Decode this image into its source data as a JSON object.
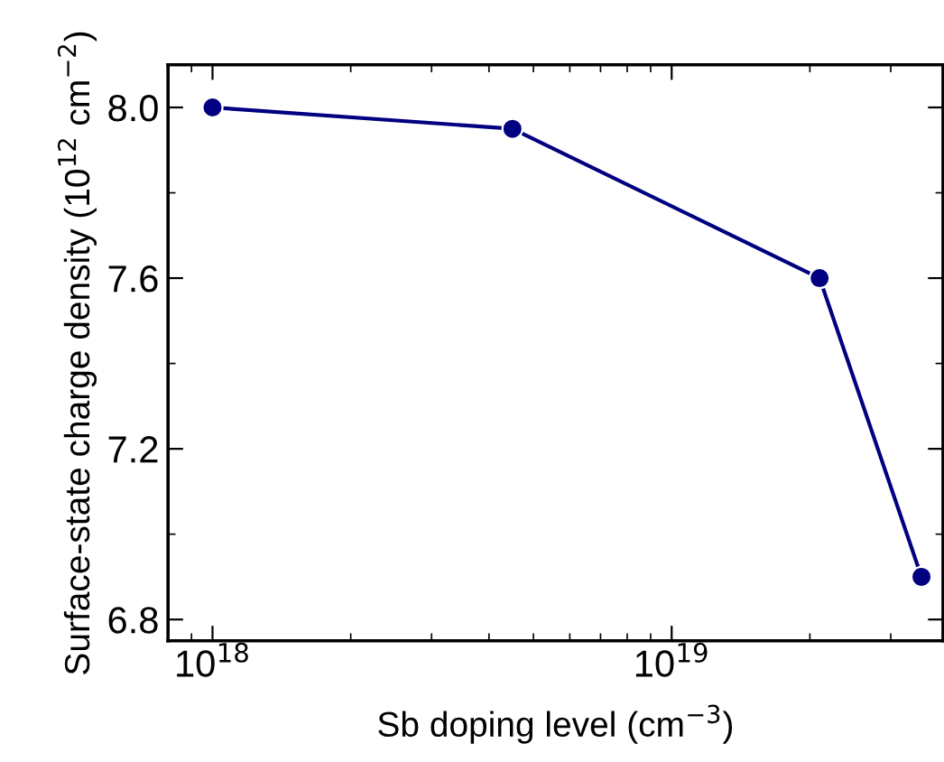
{
  "chart_data": {
    "type": "line",
    "xlabel": "Sb doping level (cm$^{−3}$)",
    "ylabel": "Surface-state charge density (10$^{12}$ cm$^{−2}$)",
    "x": [
      1e+18,
      4.5e+18,
      2.1e+19,
      3.5e+19
    ],
    "series": [
      {
        "color": "#000080",
        "values": [
          8.0,
          7.95,
          7.6,
          6.9
        ]
      }
    ],
    "log": "x",
    "xlim": [
      8e+17,
      3.9e+19
    ],
    "xticks": [
      {
        "value": 1e+18,
        "label": "10$^{18}$"
      },
      {
        "value": 1e+19,
        "label": "10$^{19}$"
      }
    ],
    "ylim": [
      6.75,
      8.1
    ],
    "yticks": [
      {
        "value": 6.8,
        "label": "6.8"
      },
      {
        "value": 7.2,
        "label": "7.2"
      },
      {
        "value": 7.6,
        "label": "7.6"
      },
      {
        "value": 8.0,
        "label": "8.0"
      }
    ],
    "grid": false,
    "legend": false,
    "marker": "circle",
    "line_style": "solid"
  }
}
